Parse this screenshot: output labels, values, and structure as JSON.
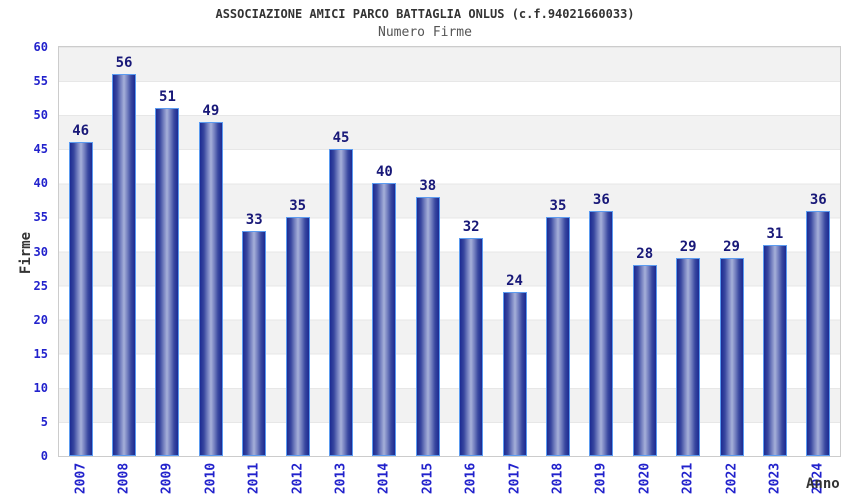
{
  "chart_data": {
    "type": "bar",
    "title": "ASSOCIAZIONE AMICI PARCO BATTAGLIA ONLUS (c.f.94021660033)",
    "subtitle": "Numero Firme",
    "xlabel": "Anno",
    "ylabel": "Firme",
    "categories": [
      "2007",
      "2008",
      "2009",
      "2010",
      "2011",
      "2012",
      "2013",
      "2014",
      "2015",
      "2016",
      "2017",
      "2018",
      "2019",
      "2020",
      "2021",
      "2022",
      "2023",
      "2024"
    ],
    "values": [
      46,
      56,
      51,
      49,
      33,
      35,
      45,
      40,
      38,
      32,
      24,
      35,
      36,
      28,
      29,
      29,
      31,
      36
    ],
    "ylim": [
      0,
      60
    ],
    "ytick_step": 5,
    "grid": "horizontal-bands",
    "legend": "none",
    "colors": {
      "tick_label": "#2222cc",
      "value_label": "#181878",
      "bar_edge": "#1c2a92",
      "bar_center": "#a6b0d9",
      "bar_outline": "#5b9bf0",
      "band": "#f2f2f2",
      "plot_border": "#cccccc",
      "title": "#333333",
      "subtitle": "#555555",
      "axis_title": "#333333"
    }
  }
}
